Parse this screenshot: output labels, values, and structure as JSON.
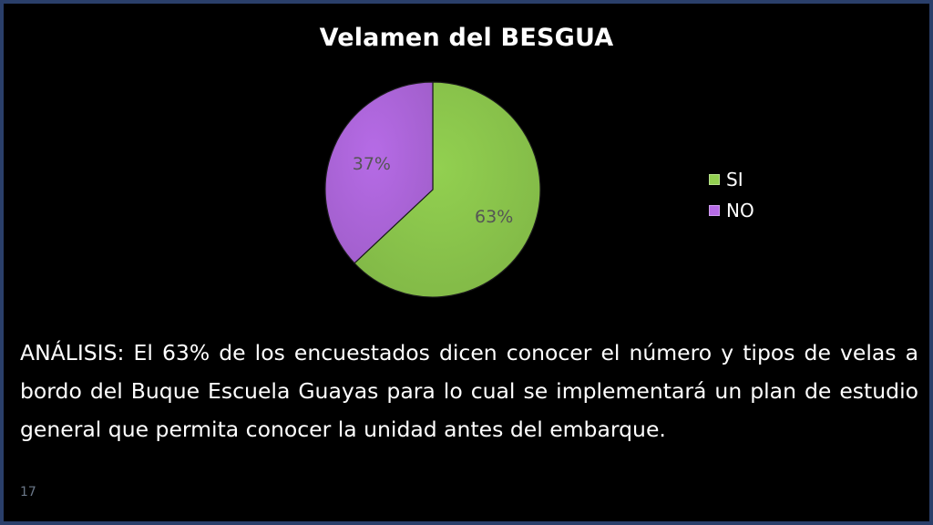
{
  "colors": {
    "background": "#000000",
    "border": "#2a3f6a",
    "si": "#92d050",
    "no": "#b66be6"
  },
  "chart_data": {
    "type": "pie",
    "title": "Velamen del BESGUA",
    "slices": [
      {
        "label": "SI",
        "value": 63,
        "data_label": "63%",
        "color": "#92d050"
      },
      {
        "label": "NO",
        "value": 37,
        "data_label": "37%",
        "color": "#b66be6"
      }
    ],
    "legend_position": "right"
  },
  "analysis_text": "ANÁLISIS: El 63% de los encuestados dicen conocer el número y tipos de velas a bordo del Buque Escuela Guayas para lo cual se implementará un plan de estudio general que permita conocer la unidad antes del embarque.",
  "slide_number": "17"
}
